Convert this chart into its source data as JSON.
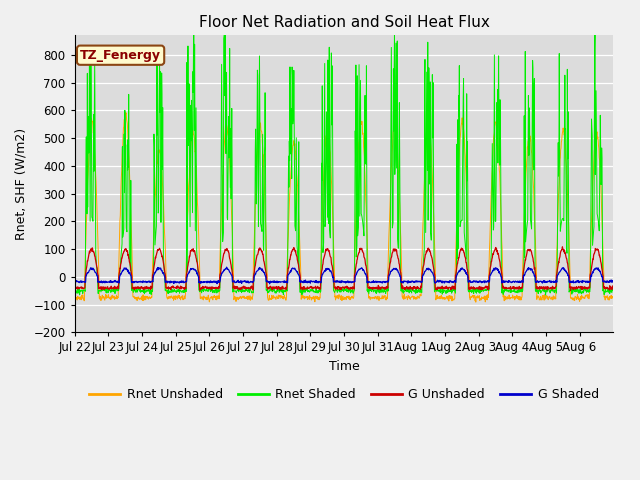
{
  "title": "Floor Net Radiation and Soil Heat Flux",
  "xlabel": "Time",
  "ylabel": "Rnet, SHF (W/m2)",
  "ylim": [
    -200,
    870
  ],
  "yticks": [
    -200,
    -100,
    0,
    100,
    200,
    300,
    400,
    500,
    600,
    700,
    800
  ],
  "n_days": 16,
  "xtick_labels": [
    "Jul 22",
    "Jul 23",
    "Jul 24",
    "Jul 25",
    "Jul 26",
    "Jul 27",
    "Jul 28",
    "Jul 29",
    "Jul 30",
    "Jul 31",
    "Aug 1",
    "Aug 2",
    "Aug 3",
    "Aug 4",
    "Aug 5",
    "Aug 6"
  ],
  "colors": {
    "rnet_unshaded": "#FFA500",
    "rnet_shaded": "#00EE00",
    "g_unshaded": "#CC0000",
    "g_shaded": "#0000CC"
  },
  "bg_color": "#DCDCDC",
  "fig_color": "#F0F0F0",
  "legend_box_facecolor": "#FFFACD",
  "legend_box_edgecolor": "#8B4513",
  "annotation_text": "TZ_Fenergy",
  "annotation_color": "#8B0000",
  "legend_labels": [
    "Rnet Unshaded",
    "Rnet Shaded",
    "G Unshaded",
    "G Shaded"
  ],
  "pts_per_day": 96,
  "rnet_u_night": -75,
  "rnet_s_night": -50,
  "g_u_night": -40,
  "g_s_night": -18
}
